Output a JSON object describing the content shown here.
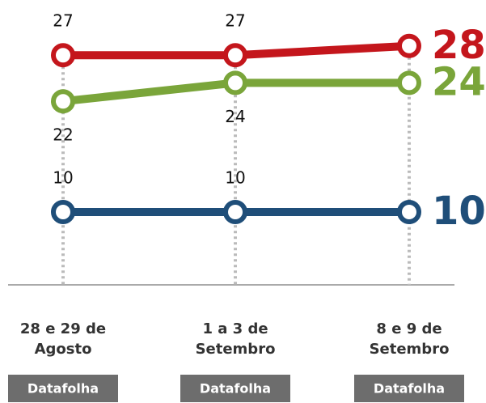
{
  "chart_data": {
    "type": "line",
    "categories": [
      [
        "28 e 29 de",
        "Agosto"
      ],
      [
        "1 a 3 de",
        "Setembro"
      ],
      [
        "8 e 9 de",
        "Setembro"
      ]
    ],
    "sources": [
      "Datafolha",
      "Datafolha",
      "Datafolha"
    ],
    "series": [
      {
        "color": "#c4161c",
        "values": [
          27,
          27,
          28
        ],
        "label_position": "above"
      },
      {
        "color": "#7aa53a",
        "values": [
          22,
          24,
          24
        ],
        "label_position": "below"
      },
      {
        "color": "#1f4e79",
        "values": [
          10,
          10,
          10
        ],
        "label_position": "above"
      }
    ]
  }
}
